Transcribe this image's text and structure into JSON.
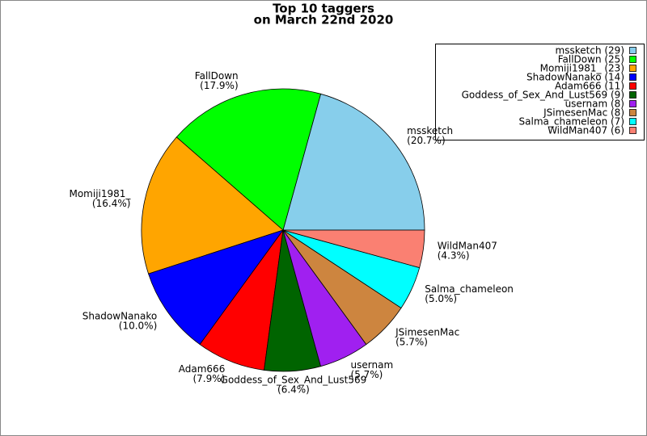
{
  "chart_data": {
    "type": "pie",
    "title": "Top 10 taggers",
    "subtitle": "on March 22nd 2020",
    "categories": [
      "mssketch",
      "FallDown",
      "Momiji1981_",
      "ShadowNanako",
      "Adam666",
      "Goddess_of_Sex_And_Lust569",
      "usernam",
      "JSimesenMac",
      "Salma_chameleon",
      "WildMan407"
    ],
    "values": [
      29,
      25,
      23,
      14,
      11,
      9,
      8,
      8,
      7,
      6
    ],
    "slice_labels": [
      "(20.7%)",
      "(17.9%)",
      "(16.4%)",
      "(10.0%)",
      "(7.9%)",
      "(6.4%)",
      "(5.7%)",
      "(5.7%)",
      "(5.0%)",
      "(4.3%)"
    ],
    "legend_labels": [
      "mssketch (29)",
      "FallDown (25)",
      "Momiji1981_ (23)",
      "ShadowNanako (14)",
      "Adam666 (11)",
      "Goddess_of_Sex_And_Lust569 (9)",
      "usernam (8)",
      "JSimesenMac (8)",
      "Salma_chameleon (7)",
      "WildMan407 (6)"
    ],
    "colors": [
      "#87ceeb",
      "#00ff00",
      "#ffa500",
      "#0000ff",
      "#ff0000",
      "#006400",
      "#a020f0",
      "#cd853f",
      "#00ffff",
      "#fa8072"
    ],
    "legend": "upper right"
  }
}
